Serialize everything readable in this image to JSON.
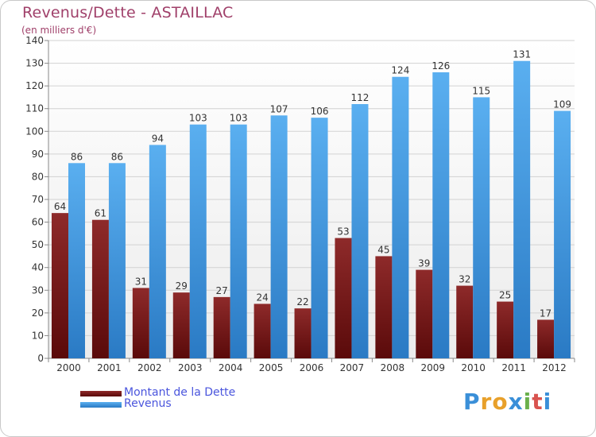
{
  "chart_data": {
    "type": "bar",
    "title": "Revenus/Dette - ASTAILLAC",
    "subtitle": "(en milliers d'€)",
    "xlabel": "",
    "ylabel": "",
    "ylim": [
      0,
      140
    ],
    "ytick_step": 10,
    "categories": [
      "2000",
      "2001",
      "2002",
      "2003",
      "2004",
      "2005",
      "2006",
      "2007",
      "2008",
      "2009",
      "2010",
      "2011",
      "2012"
    ],
    "series": [
      {
        "name": "Montant de la Dette",
        "color": "#7a1a1a",
        "values": [
          64,
          61,
          31,
          29,
          27,
          24,
          22,
          53,
          45,
          39,
          32,
          25,
          17
        ]
      },
      {
        "name": "Revenus",
        "color": "#3a8fd8",
        "values": [
          86,
          86,
          94,
          103,
          103,
          107,
          106,
          112,
          124,
          126,
          115,
          131,
          109
        ]
      }
    ],
    "grid": true,
    "legend_position": "bottom-left"
  },
  "logo": {
    "letters": [
      "P",
      "r",
      "o",
      "x",
      "i",
      "t",
      "i"
    ],
    "colors": [
      "#3a8fd8",
      "#e8a02a",
      "#e8a02a",
      "#3a8fd8",
      "#6ab04c",
      "#d9534f",
      "#3a8fd8"
    ]
  }
}
